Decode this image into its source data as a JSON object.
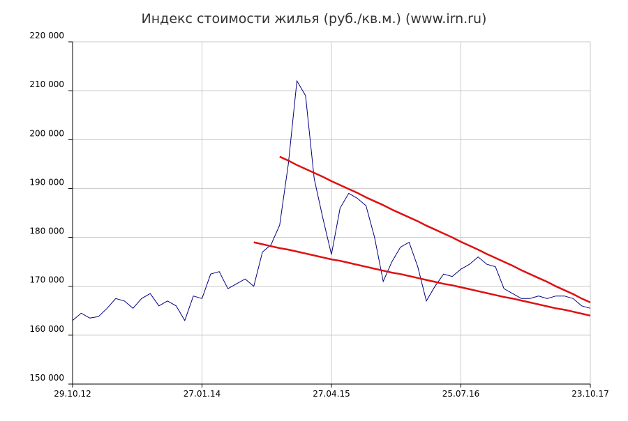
{
  "chart_data": {
    "type": "line",
    "title": "Индекс стоимости жилья (руб./кв.м.) (www.irn.ru)",
    "categories": [
      "29.10.12",
      null,
      null,
      null,
      null,
      null,
      null,
      null,
      null,
      null,
      null,
      null,
      null,
      null,
      null,
      "27.01.14",
      null,
      null,
      null,
      null,
      null,
      null,
      null,
      null,
      null,
      null,
      null,
      null,
      null,
      null,
      "27.04.15",
      null,
      null,
      null,
      null,
      null,
      null,
      null,
      null,
      null,
      null,
      null,
      null,
      null,
      null,
      "25.07.16",
      null,
      null,
      null,
      null,
      null,
      null,
      null,
      null,
      null,
      null,
      null,
      null,
      null,
      null,
      "23.10.17"
    ],
    "series": [
      {
        "color": "#000080",
        "width": 1,
        "values": [
          163000,
          164500,
          163500,
          163800,
          165500,
          167500,
          167000,
          165500,
          167500,
          168500,
          166000,
          167000,
          166000,
          163000,
          168000,
          167500,
          172500,
          173000,
          169500,
          170500,
          171500,
          170000,
          177000,
          178500,
          182500,
          195000,
          212000,
          209000,
          192000,
          184000,
          176500,
          186000,
          189000,
          188000,
          186500,
          180000,
          171000,
          175000,
          178000,
          179000,
          174000,
          167000,
          170000,
          172500,
          172000,
          173500,
          174500,
          176000,
          174500,
          174000,
          169500,
          168500,
          167500,
          167500,
          168000,
          167500,
          168000,
          168000,
          167500,
          166000,
          165500
        ]
      },
      {
        "color": "#e01010",
        "width": 2.5,
        "values": [
          null,
          null,
          null,
          null,
          null,
          null,
          null,
          null,
          null,
          null,
          null,
          null,
          null,
          null,
          null,
          null,
          null,
          null,
          null,
          null,
          null,
          null,
          null,
          null,
          196500,
          195700,
          194800,
          194000,
          193200,
          192400,
          191500,
          190700,
          189900,
          189100,
          188200,
          187400,
          186600,
          185700,
          184900,
          184100,
          183300,
          182400,
          181600,
          180800,
          180000,
          179100,
          178300,
          177500,
          176600,
          175800,
          175000,
          174200,
          173300,
          172500,
          171700,
          170900,
          170000,
          169200,
          168400,
          167500,
          166700
        ]
      },
      {
        "color": "#e01010",
        "width": 2.5,
        "values": [
          null,
          null,
          null,
          null,
          null,
          null,
          null,
          null,
          null,
          null,
          null,
          null,
          null,
          null,
          null,
          null,
          null,
          null,
          null,
          null,
          null,
          179000,
          178600,
          178200,
          177800,
          177500,
          177100,
          176700,
          176300,
          175900,
          175500,
          175200,
          174800,
          174400,
          174000,
          173600,
          173200,
          172800,
          172500,
          172100,
          171700,
          171300,
          170900,
          170500,
          170200,
          169800,
          169400,
          169000,
          168600,
          168200,
          167800,
          167500,
          167100,
          166700,
          166300,
          165900,
          165500,
          165200,
          164800,
          164400,
          164000
        ]
      }
    ],
    "ylim": [
      150000,
      220000
    ],
    "yticks": [
      {
        "value": 150000,
        "label": "150 000"
      },
      {
        "value": 160000,
        "label": "160 000"
      },
      {
        "value": 170000,
        "label": "170 000"
      },
      {
        "value": 180000,
        "label": "180 000"
      },
      {
        "value": 190000,
        "label": "190 000"
      },
      {
        "value": 200000,
        "label": "200 000"
      },
      {
        "value": 210000,
        "label": "210 000"
      },
      {
        "value": 220000,
        "label": "220 000"
      }
    ],
    "grid": true
  }
}
